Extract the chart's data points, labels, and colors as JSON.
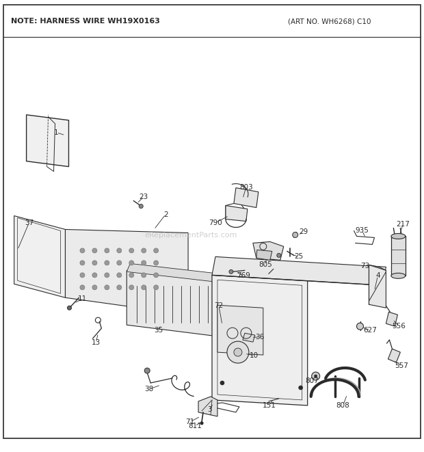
{
  "bg_color": "#ffffff",
  "line_color": "#2a2a2a",
  "note_text": "NOTE: HARNESS WIRE WH19X0163",
  "art_no_text": "(ART NO. WH6268) C10",
  "watermark": "eReplacementParts.com",
  "figsize": [
    6.2,
    6.61
  ],
  "dpi": 100
}
